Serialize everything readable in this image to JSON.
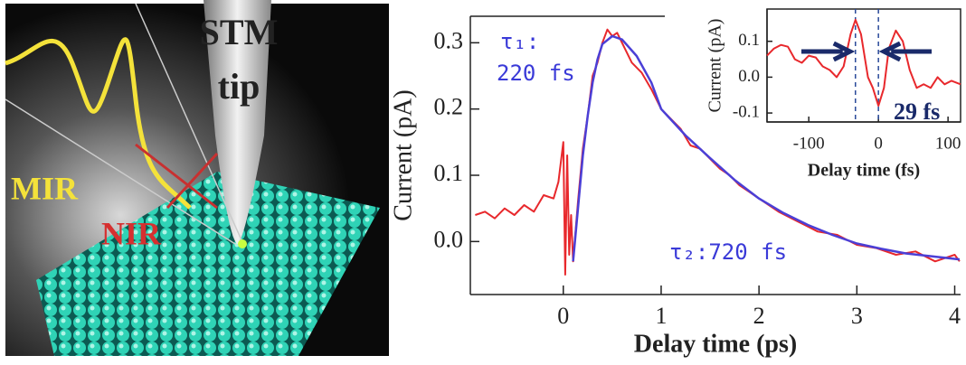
{
  "illustration": {
    "labels": [
      "STM",
      "tip",
      "MIR",
      "NIR"
    ]
  },
  "chart_data": [
    {
      "type": "line",
      "x_label": "Delay time (ps)",
      "y_label": "Current (pA)",
      "xlim": [
        -0.95,
        4.06
      ],
      "ylim": [
        -0.08,
        0.34
      ],
      "xticks": [
        0,
        1,
        2,
        3,
        4
      ],
      "yticks": [
        {
          "value": 0,
          "label": "0.0"
        },
        0.1,
        0.2,
        0.3
      ],
      "annotations": [
        "τ₁:",
        "220 fs",
        "τ₂:720 fs"
      ],
      "series": [
        {
          "color": "#e8282c",
          "x": [
            -0.9,
            -0.8,
            -0.7,
            -0.6,
            -0.5,
            -0.4,
            -0.3,
            -0.2,
            -0.1,
            -0.05,
            0,
            0.02,
            0.04,
            0.06,
            0.08,
            0.1,
            0.15,
            0.2,
            0.25,
            0.3,
            0.35,
            0.4,
            0.45,
            0.5,
            0.55,
            0.6,
            0.7,
            0.8,
            0.9,
            1.0,
            1.1,
            1.2,
            1.3,
            1.4,
            1.5,
            1.6,
            1.7,
            1.8,
            1.9,
            2.0,
            2.2,
            2.4,
            2.6,
            2.8,
            3.0,
            3.2,
            3.4,
            3.6,
            3.8,
            4.0,
            4.05
          ],
          "values": [
            0.04,
            0.045,
            0.035,
            0.05,
            0.04,
            0.055,
            0.045,
            0.07,
            0.065,
            0.09,
            0.15,
            -0.05,
            0.13,
            -0.02,
            0.04,
            -0.03,
            0.06,
            0.14,
            0.19,
            0.25,
            0.27,
            0.3,
            0.32,
            0.31,
            0.315,
            0.3,
            0.27,
            0.255,
            0.23,
            0.2,
            0.185,
            0.17,
            0.145,
            0.14,
            0.125,
            0.11,
            0.1,
            0.085,
            0.075,
            0.065,
            0.045,
            0.03,
            0.015,
            0.01,
            -0.005,
            -0.01,
            -0.02,
            -0.015,
            -0.03,
            -0.02,
            -0.03
          ]
        },
        {
          "color": "#4b3fd6",
          "x": [
            0.1,
            0.15,
            0.2,
            0.25,
            0.3,
            0.35,
            0.4,
            0.5,
            0.6,
            0.75,
            0.9,
            1.0,
            1.25,
            1.5,
            1.75,
            2,
            2.25,
            2.5,
            2.75,
            3,
            3.25,
            3.5,
            3.75,
            4.05
          ],
          "values": [
            -0.03,
            0.05,
            0.13,
            0.19,
            0.24,
            0.275,
            0.298,
            0.31,
            0.305,
            0.28,
            0.24,
            0.2,
            0.16,
            0.126,
            0.093,
            0.065,
            0.043,
            0.025,
            0.01,
            -0.003,
            -0.011,
            -0.018,
            -0.022,
            -0.027
          ]
        }
      ]
    },
    {
      "type": "line",
      "x_label": "Delay time (fs)",
      "y_label": "Current (pA)",
      "xlim": [
        -160,
        118
      ],
      "ylim": [
        -0.125,
        0.19
      ],
      "xticks": [
        -100,
        0,
        100
      ],
      "yticks": [
        -0.1,
        {
          "value": 0,
          "label": "0.0"
        },
        0.1
      ],
      "vlines": [
        -33,
        0
      ],
      "annotations": [
        "29 fs"
      ],
      "series": [
        {
          "color": "#e8282c",
          "x": [
            -160,
            -150,
            -140,
            -130,
            -120,
            -110,
            -100,
            -90,
            -80,
            -70,
            -60,
            -50,
            -40,
            -33,
            -25,
            -15,
            -8,
            0,
            8,
            15,
            25,
            35,
            45,
            55,
            65,
            75,
            85,
            95,
            105,
            118
          ],
          "values": [
            0.06,
            0.08,
            0.09,
            0.085,
            0.05,
            0.04,
            0.06,
            0.055,
            0.03,
            0.02,
            0.0,
            0.03,
            0.12,
            0.16,
            0.12,
            0.0,
            -0.03,
            -0.08,
            -0.03,
            0.08,
            0.13,
            0.1,
            0.02,
            -0.03,
            -0.02,
            -0.03,
            0.0,
            -0.02,
            -0.01,
            -0.02
          ]
        }
      ]
    }
  ]
}
